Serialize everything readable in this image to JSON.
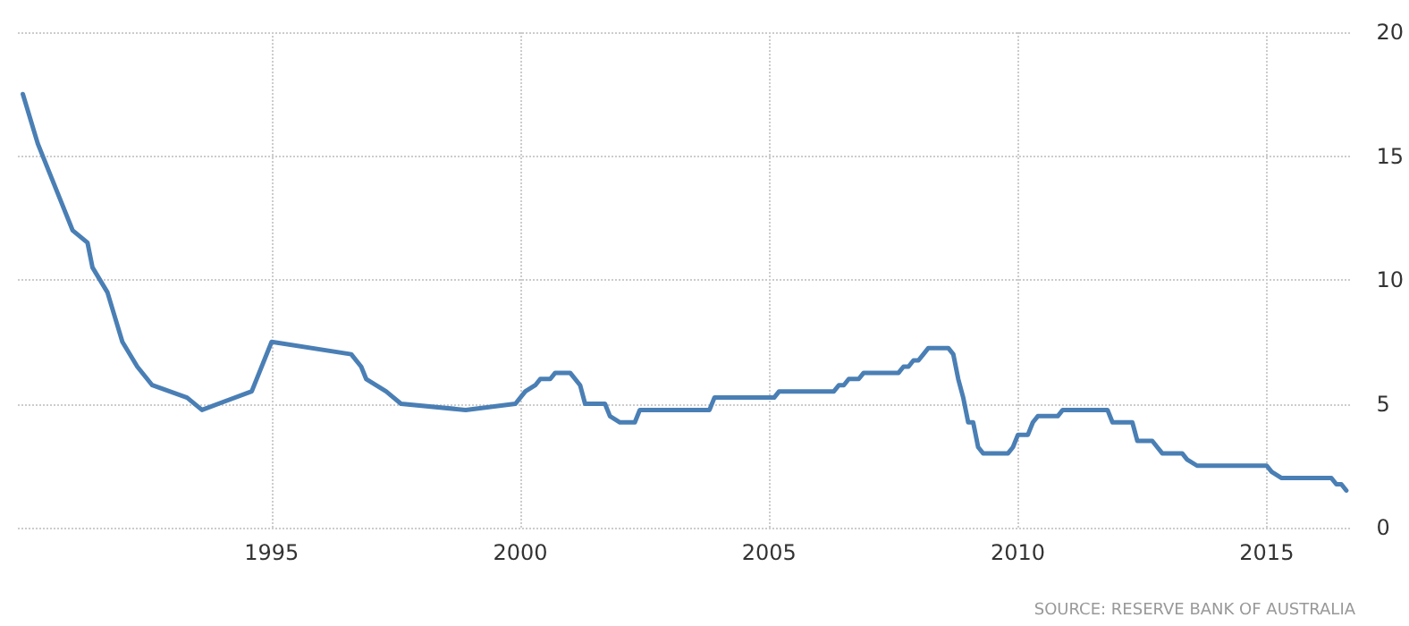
{
  "chart_data": {
    "type": "line",
    "x": [
      1990.0,
      1990.3,
      1991.0,
      1991.3,
      1991.4,
      1991.7,
      1992.0,
      1992.3,
      1992.6,
      1993.3,
      1993.6,
      1994.6,
      1995.0,
      1996.6,
      1996.8,
      1996.9,
      1997.3,
      1997.6,
      1998.9,
      1999.9,
      2000.1,
      2000.3,
      2000.4,
      2000.6,
      2000.7,
      2001.0,
      2001.2,
      2001.3,
      2001.7,
      2001.8,
      2002.0,
      2002.3,
      2002.4,
      2003.8,
      2003.9,
      2005.1,
      2005.2,
      2006.3,
      2006.4,
      2006.5,
      2006.6,
      2006.8,
      2006.9,
      2007.6,
      2007.7,
      2007.8,
      2007.9,
      2008.0,
      2008.1,
      2008.2,
      2008.6,
      2008.7,
      2008.8,
      2008.9,
      2009.0,
      2009.1,
      2009.2,
      2009.3,
      2009.8,
      2009.9,
      2010.0,
      2010.2,
      2010.3,
      2010.4,
      2010.8,
      2010.9,
      2011.8,
      2011.9,
      2012.3,
      2012.4,
      2012.7,
      2012.8,
      2012.9,
      2013.3,
      2013.4,
      2013.6,
      2015.0,
      2015.1,
      2015.3,
      2016.3,
      2016.4,
      2016.5,
      2016.6
    ],
    "series": [
      {
        "color": "#4a7fb5",
        "values": [
          17.5,
          15.5,
          12.0,
          11.5,
          10.5,
          9.5,
          7.5,
          6.5,
          5.75,
          5.25,
          4.75,
          5.5,
          7.5,
          7.0,
          6.5,
          6.0,
          5.5,
          5.0,
          4.75,
          5.0,
          5.5,
          5.75,
          6.0,
          6.0,
          6.25,
          6.25,
          5.75,
          5.0,
          5.0,
          4.5,
          4.25,
          4.25,
          4.75,
          4.75,
          5.25,
          5.25,
          5.5,
          5.5,
          5.75,
          5.75,
          6.0,
          6.0,
          6.25,
          6.25,
          6.5,
          6.5,
          6.75,
          6.75,
          7.0,
          7.25,
          7.25,
          7.0,
          6.0,
          5.25,
          4.25,
          4.25,
          3.25,
          3.0,
          3.0,
          3.25,
          3.75,
          3.75,
          4.25,
          4.5,
          4.5,
          4.75,
          4.75,
          4.25,
          4.25,
          3.5,
          3.5,
          3.25,
          3.0,
          3.0,
          2.75,
          2.5,
          2.5,
          2.25,
          2.0,
          2.0,
          1.75,
          1.75,
          1.5
        ]
      }
    ],
    "xlim": [
      1989.9,
      2016.7
    ],
    "xticks": [
      1995,
      2000,
      2005,
      2010,
      2015
    ],
    "ylim": [
      0,
      20
    ],
    "yticks": [
      0,
      5,
      10,
      15,
      20
    ],
    "grid": true,
    "marker": "none",
    "line_style": "solid",
    "annotations": [
      "SOURCE: RESERVE BANK OF AUSTRALIA"
    ]
  }
}
